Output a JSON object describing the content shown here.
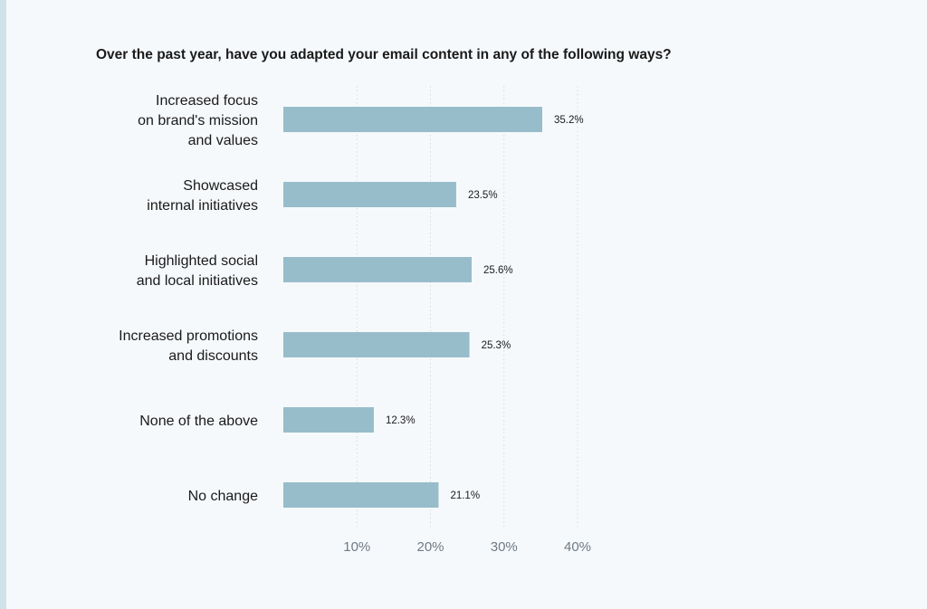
{
  "chart_data": {
    "type": "bar",
    "orientation": "horizontal",
    "title": "Over the past year, have you adapted your email content in any of the following ways?",
    "categories": [
      [
        "Increased focus",
        "on brand's mission",
        "and values"
      ],
      [
        "Showcased",
        "internal initiatives"
      ],
      [
        "Highlighted social",
        "and local initiatives"
      ],
      [
        "Increased promotions",
        "and discounts"
      ],
      [
        "None of the above"
      ],
      [
        "No change"
      ]
    ],
    "values": [
      35.2,
      23.5,
      25.6,
      25.3,
      12.3,
      21.1
    ],
    "value_labels": [
      "35.2%",
      "23.5%",
      "25.6%",
      "25.3%",
      "12.3%",
      "21.1%"
    ],
    "xlim": [
      0,
      40
    ],
    "x_ticks": [
      10,
      20,
      30,
      40
    ],
    "x_tick_labels": [
      "10%",
      "20%",
      "30%",
      "40%"
    ],
    "grid": "vertical-dotted",
    "colors": {
      "bar": "#97bdca",
      "grid": "#d4dadf",
      "tick_text": "#6f7a83",
      "label_text": "#1a1a1a",
      "background": "#f6f9fc",
      "accent": "#cfe2ea"
    }
  }
}
